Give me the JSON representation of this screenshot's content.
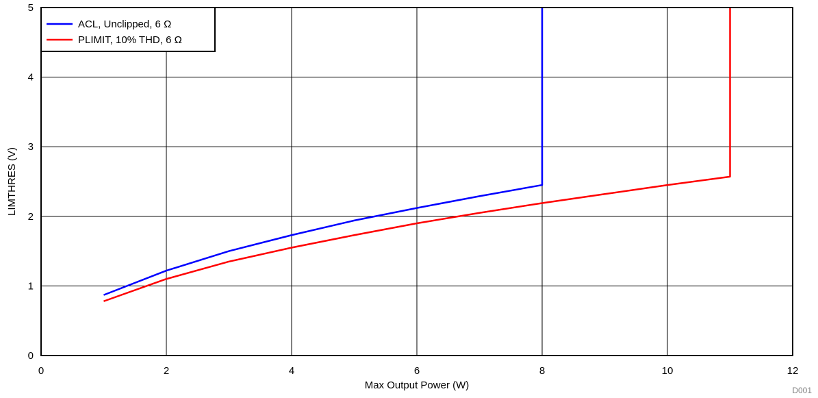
{
  "chart_data": {
    "type": "line",
    "title": "",
    "xlabel": "Max Output Power (W)",
    "ylabel": "LIMTHRES (V)",
    "xlim": [
      0,
      12
    ],
    "ylim": [
      0,
      5
    ],
    "x_ticks": [
      0,
      2,
      4,
      6,
      8,
      10,
      12
    ],
    "y_ticks": [
      0,
      1,
      2,
      3,
      4,
      5
    ],
    "grid": true,
    "legend_position": "top-left",
    "series": [
      {
        "name": "ACL, Unclipped, 6 Ω",
        "color": "#0000ff",
        "points": [
          [
            1,
            0.87
          ],
          [
            2,
            1.22
          ],
          [
            3,
            1.5
          ],
          [
            4,
            1.73
          ],
          [
            5,
            1.94
          ],
          [
            6,
            2.12
          ],
          [
            7,
            2.29
          ],
          [
            8,
            2.45
          ],
          [
            8,
            5
          ]
        ]
      },
      {
        "name": "PLIMIT, 10% THD, 6 Ω",
        "color": "#ff0000",
        "points": [
          [
            1,
            0.78
          ],
          [
            2,
            1.1
          ],
          [
            3,
            1.35
          ],
          [
            4,
            1.55
          ],
          [
            5,
            1.73
          ],
          [
            6,
            1.9
          ],
          [
            7,
            2.05
          ],
          [
            8,
            2.19
          ],
          [
            9,
            2.32
          ],
          [
            10,
            2.45
          ],
          [
            11,
            2.57
          ],
          [
            11,
            5
          ]
        ]
      }
    ],
    "figure_id": "D001"
  }
}
